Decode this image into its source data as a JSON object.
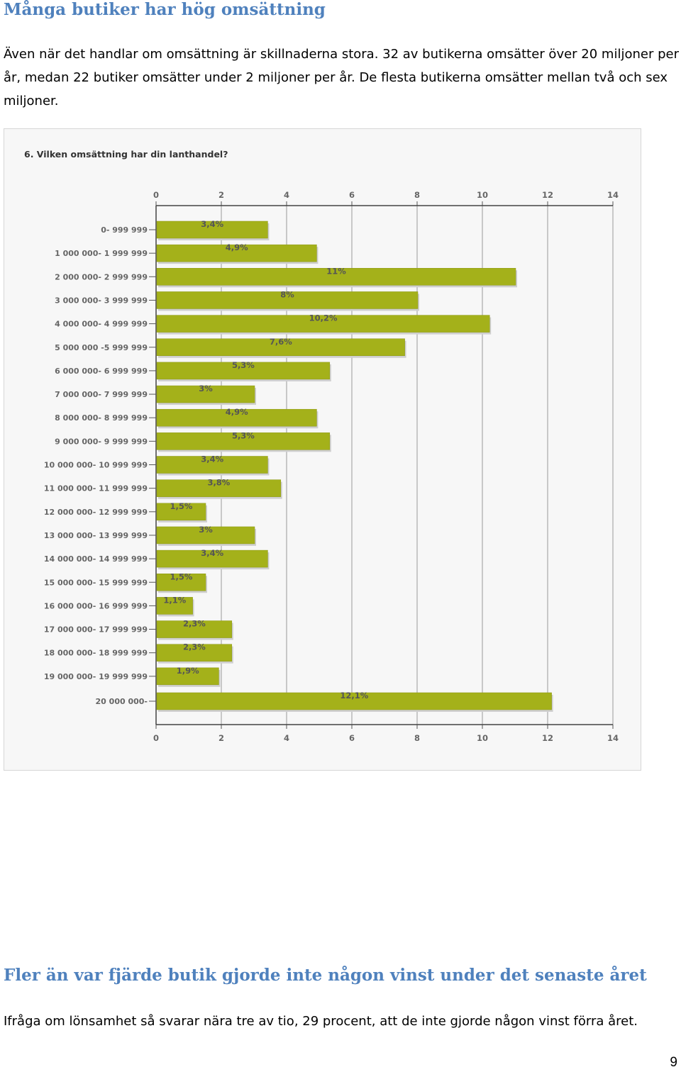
{
  "section1": {
    "heading": "Många butiker har hög omsättning",
    "paragraph": "Även när det handlar om omsättning är skillnaderna stora. 32 av butikerna omsätter över 20 miljoner per år, medan 22 butiker omsätter under 2 miljoner per år. De flesta butikerna omsätter mellan två och sex miljoner."
  },
  "chart_data": {
    "type": "bar",
    "orientation": "horizontal",
    "title": "6. Vilken omsättning har din lanthandel?",
    "xlim": [
      0,
      14
    ],
    "xticks": [
      "0",
      "2",
      "4",
      "6",
      "8",
      "10",
      "12",
      "14"
    ],
    "grid": true,
    "bar_color": "#a4b11a",
    "categories": [
      "0- 999 999",
      "1 000 000- 1 999 999",
      "2 000 000- 2 999 999",
      "3 000 000- 3 999 999",
      "4 000 000- 4 999 999",
      "5 000 000 -5 999 999",
      "6 000 000- 6 999 999",
      "7 000 000- 7 999 999",
      "8 000 000- 8 999 999",
      "9 000 000- 9 999 999",
      "10 000 000- 10 999 999",
      "11 000 000- 11 999 999",
      "12 000 000- 12 999 999",
      "13 000 000- 13 999 999",
      "14 000 000- 14 999 999",
      "15 000 000- 15 999 999",
      "16 000 000- 16 999 999",
      "17 000 000- 17 999 999",
      "18 000 000- 18 999 999",
      "19 000 000- 19 999 999",
      "20 000 000-"
    ],
    "values": [
      3.4,
      4.9,
      11,
      8,
      10.2,
      7.6,
      5.3,
      3,
      4.9,
      5.3,
      3.4,
      3.8,
      1.5,
      3,
      3.4,
      1.5,
      1.1,
      2.3,
      2.3,
      1.9,
      12.1
    ],
    "value_labels": [
      "3,4%",
      "4,9%",
      "11%",
      "8%",
      "10,2%",
      "7,6%",
      "5,3%",
      "3%",
      "4,9%",
      "5,3%",
      "3,4%",
      "3,8%",
      "1,5%",
      "3%",
      "3,4%",
      "1,5%",
      "1,1%",
      "2,3%",
      "2,3%",
      "1,9%",
      "12,1%"
    ]
  },
  "section2": {
    "heading": "Fler än var fjärde butik gjorde inte någon vinst under det senaste året",
    "paragraph": "Ifråga om lönsamhet så svarar nära tre av tio, 29 procent, att de inte gjorde någon vinst förra året."
  },
  "page_number": "9"
}
